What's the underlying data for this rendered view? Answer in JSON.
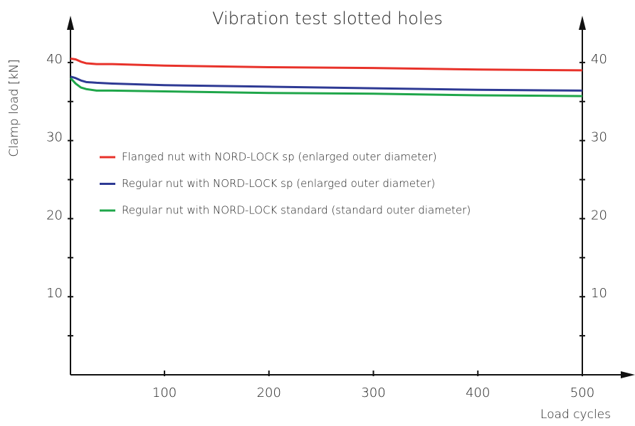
{
  "chart_data": {
    "type": "line",
    "title": "Vibration test slotted holes",
    "y_label": "Clamp load [kN]",
    "x_label": "Load cycles",
    "x": [
      10,
      15,
      20,
      25,
      35,
      50,
      100,
      200,
      300,
      400,
      500
    ],
    "series": [
      {
        "name": "Flanged nut with NORD-LOCK sp (enlarged outer diameter)",
        "color": "#e8322a",
        "values": [
          40.5,
          40.4,
          40.1,
          39.9,
          39.8,
          39.8,
          39.6,
          39.4,
          39.3,
          39.1,
          39.0
        ]
      },
      {
        "name": "Regular nut with NORD-LOCK sp (enlarged outer diameter)",
        "color": "#2e3a94",
        "values": [
          38.2,
          38.0,
          37.7,
          37.5,
          37.4,
          37.3,
          37.1,
          36.9,
          36.7,
          36.5,
          36.4
        ]
      },
      {
        "name": "Regular nut with NORD-LOCK standard (standard outer diameter)",
        "color": "#1fa64a",
        "values": [
          38.0,
          37.3,
          36.8,
          36.6,
          36.4,
          36.4,
          36.3,
          36.1,
          36.0,
          35.8,
          35.7
        ]
      }
    ],
    "xlim": [
      10,
      500
    ],
    "xticks": [
      100,
      200,
      300,
      400,
      500
    ],
    "ylim": [
      0,
      45
    ],
    "yticks": [
      10,
      20,
      30,
      40
    ],
    "minor_yticks": [
      5,
      15,
      25,
      35
    ],
    "y2lim": [
      0,
      45
    ],
    "y2ticks": [
      10,
      20,
      30,
      40
    ],
    "grid": false
  }
}
